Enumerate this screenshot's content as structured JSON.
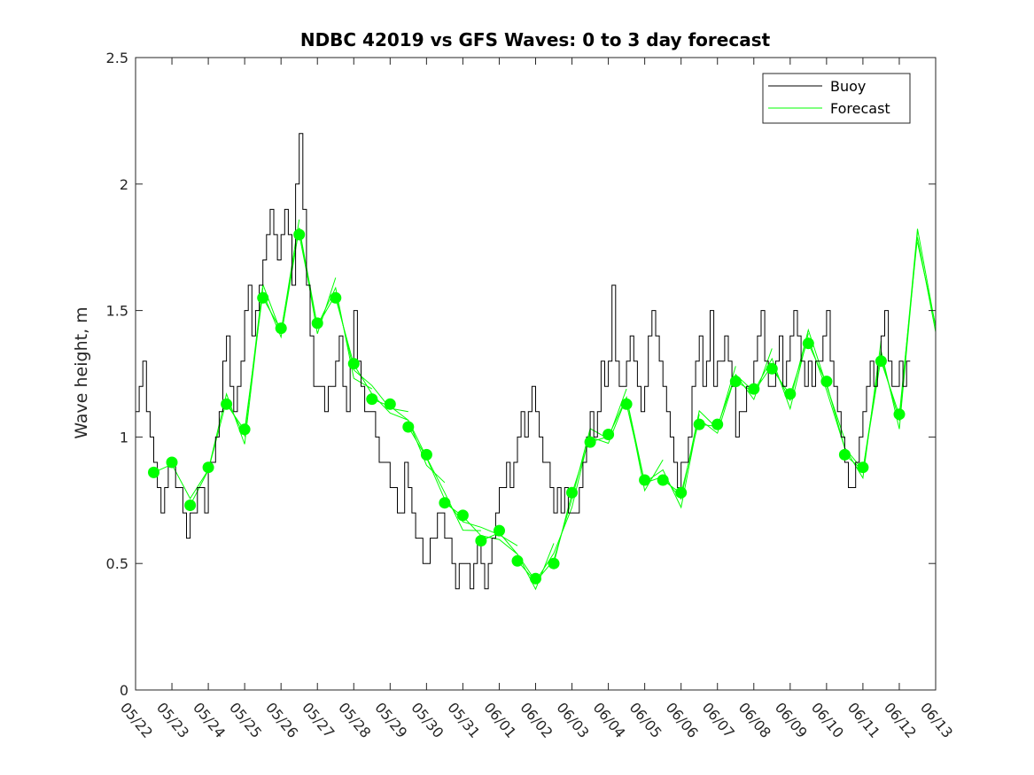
{
  "chart_data": {
    "type": "line",
    "title": "NDBC 42019 vs GFS Waves: 0 to 3 day forecast",
    "xlabel": "",
    "ylabel": "Wave height, m",
    "ylim": [
      0,
      2.5
    ],
    "yticks": [
      0,
      0.5,
      1,
      1.5,
      2,
      2.5
    ],
    "ytick_labels": [
      "0",
      "0.5",
      "1",
      "1.5",
      "2",
      "2.5"
    ],
    "xlim": [
      0,
      22
    ],
    "x_unit": "days since 05/22",
    "xtick_labels": [
      "05/22",
      "05/23",
      "05/24",
      "05/25",
      "05/26",
      "05/27",
      "05/28",
      "05/29",
      "05/30",
      "05/31",
      "06/01",
      "06/02",
      "06/03",
      "06/04",
      "06/05",
      "06/06",
      "06/07",
      "06/08",
      "06/09",
      "06/10",
      "06/11",
      "06/12",
      "06/13"
    ],
    "grid": false,
    "legend": {
      "position": "top-right",
      "entries": [
        {
          "label": "Buoy",
          "color": "#000000",
          "style": "line"
        },
        {
          "label": "Forecast",
          "color": "#00ff00",
          "style": "line"
        }
      ]
    },
    "colors": {
      "buoy": "#000000",
      "forecast": "#00ff00"
    },
    "series": [
      {
        "name": "Buoy",
        "x": [
          0,
          0.1,
          0.2,
          0.3,
          0.4,
          0.5,
          0.6,
          0.7,
          0.8,
          0.9,
          1.0,
          1.1,
          1.2,
          1.3,
          1.4,
          1.5,
          1.6,
          1.7,
          1.8,
          1.9,
          2.0,
          2.1,
          2.2,
          2.3,
          2.4,
          2.5,
          2.6,
          2.7,
          2.8,
          2.9,
          3.0,
          3.1,
          3.2,
          3.3,
          3.4,
          3.5,
          3.6,
          3.7,
          3.8,
          3.9,
          4.0,
          4.1,
          4.2,
          4.3,
          4.4,
          4.5,
          4.6,
          4.7,
          4.8,
          4.9,
          5.0,
          5.1,
          5.2,
          5.3,
          5.4,
          5.5,
          5.6,
          5.7,
          5.8,
          5.9,
          6.0,
          6.1,
          6.2,
          6.3,
          6.4,
          6.5,
          6.6,
          6.7,
          6.8,
          6.9,
          7.0,
          7.1,
          7.2,
          7.3,
          7.4,
          7.5,
          7.6,
          7.7,
          7.8,
          7.9,
          8.0,
          8.1,
          8.2,
          8.3,
          8.4,
          8.5,
          8.6,
          8.7,
          8.8,
          8.9,
          9.0,
          9.1,
          9.2,
          9.3,
          9.4,
          9.5,
          9.6,
          9.7,
          9.8,
          9.9,
          10.0,
          10.1,
          10.2,
          10.3,
          10.4,
          10.5,
          10.6,
          10.7,
          10.8,
          10.9,
          11.0,
          11.1,
          11.2,
          11.3,
          11.4,
          11.5,
          11.6,
          11.7,
          11.8,
          11.9,
          12.0,
          12.1,
          12.2,
          12.3,
          12.4,
          12.5,
          12.6,
          12.7,
          12.8,
          12.9,
          13.0,
          13.1,
          13.2,
          13.3,
          13.4,
          13.5,
          13.6,
          13.7,
          13.8,
          13.9,
          14.0,
          14.1,
          14.2,
          14.3,
          14.4,
          14.5,
          14.6,
          14.7,
          14.8,
          14.9,
          15.0,
          15.1,
          15.2,
          15.3,
          15.4,
          15.5,
          15.6,
          15.7,
          15.8,
          15.9,
          16.0,
          16.1,
          16.2,
          16.3,
          16.4,
          16.5,
          16.6,
          16.7,
          16.8,
          16.9,
          17.0,
          17.1,
          17.2,
          17.3,
          17.4,
          17.5,
          17.6,
          17.7,
          17.8,
          17.9,
          18.0,
          18.1,
          18.2,
          18.3,
          18.4,
          18.5,
          18.6,
          18.7,
          18.8,
          18.9,
          19.0,
          19.1,
          19.2,
          19.3,
          19.4,
          19.5,
          19.6,
          19.7,
          19.8,
          19.9,
          20.0,
          20.1,
          20.2,
          20.3,
          20.4,
          20.5,
          20.6,
          20.7,
          20.8,
          20.9,
          21.0,
          21.1,
          21.2,
          21.3
        ],
        "y": [
          1.1,
          1.2,
          1.3,
          1.1,
          1.0,
          0.9,
          0.8,
          0.7,
          0.8,
          0.9,
          0.9,
          0.8,
          0.8,
          0.7,
          0.6,
          0.7,
          0.7,
          0.8,
          0.8,
          0.7,
          0.9,
          0.9,
          1.0,
          1.1,
          1.3,
          1.4,
          1.2,
          1.1,
          1.2,
          1.3,
          1.5,
          1.6,
          1.4,
          1.5,
          1.6,
          1.7,
          1.8,
          1.9,
          1.8,
          1.7,
          1.8,
          1.9,
          1.8,
          1.6,
          2.0,
          2.2,
          1.9,
          1.6,
          1.4,
          1.2,
          1.2,
          1.2,
          1.1,
          1.2,
          1.2,
          1.3,
          1.4,
          1.2,
          1.1,
          1.3,
          1.5,
          1.3,
          1.2,
          1.1,
          1.1,
          1.1,
          1.0,
          0.9,
          0.9,
          0.9,
          0.8,
          0.8,
          0.7,
          0.7,
          0.9,
          0.8,
          0.7,
          0.6,
          0.6,
          0.5,
          0.5,
          0.6,
          0.6,
          0.7,
          0.7,
          0.6,
          0.6,
          0.5,
          0.4,
          0.5,
          0.5,
          0.5,
          0.4,
          0.5,
          0.6,
          0.5,
          0.4,
          0.5,
          0.6,
          0.7,
          0.8,
          0.8,
          0.9,
          0.8,
          0.9,
          1.0,
          1.1,
          1.0,
          1.1,
          1.2,
          1.1,
          1.0,
          0.9,
          0.9,
          0.8,
          0.7,
          0.8,
          0.7,
          0.8,
          0.7,
          0.7,
          0.7,
          0.8,
          0.9,
          1.0,
          1.1,
          1.0,
          1.1,
          1.3,
          1.2,
          1.3,
          1.6,
          1.3,
          1.2,
          1.2,
          1.3,
          1.4,
          1.3,
          1.2,
          1.1,
          1.2,
          1.4,
          1.5,
          1.4,
          1.3,
          1.2,
          1.1,
          1.0,
          0.9,
          0.8,
          0.9,
          0.9,
          1.0,
          1.2,
          1.3,
          1.4,
          1.2,
          1.3,
          1.5,
          1.2,
          1.3,
          1.3,
          1.4,
          1.3,
          1.2,
          1.0,
          1.1,
          1.1,
          1.2,
          1.2,
          1.3,
          1.4,
          1.5,
          1.3,
          1.2,
          1.2,
          1.3,
          1.4,
          1.2,
          1.3,
          1.4,
          1.5,
          1.4,
          1.3,
          1.2,
          1.3,
          1.2,
          1.3,
          1.3,
          1.4,
          1.5,
          1.3,
          1.2,
          1.1,
          1.0,
          0.9,
          0.8,
          0.8,
          0.9,
          1.0,
          1.1,
          1.2,
          1.3,
          1.2,
          1.3,
          1.4,
          1.5,
          1.3,
          1.2,
          1.2,
          1.3,
          1.2,
          1.3,
          1.3
        ]
      },
      {
        "name": "Forecast",
        "x": [
          0.5,
          1.0,
          1.5,
          2.0,
          2.5,
          3.0,
          3.5,
          4.0,
          4.5,
          5.0,
          5.5,
          6.0,
          6.5,
          7.0,
          7.5,
          8.0,
          8.5,
          9.0,
          9.5,
          10.0,
          10.5,
          11.0,
          11.5,
          12.0,
          12.5,
          13.0,
          13.5,
          14.0,
          14.5,
          15.0,
          15.5,
          16.0,
          16.5,
          17.0,
          17.5,
          18.0,
          18.5,
          19.0,
          19.5,
          20.0,
          20.5,
          21.0,
          21.5,
          22.0
        ],
        "y": [
          0.86,
          0.9,
          0.73,
          0.88,
          1.13,
          1.03,
          1.55,
          1.43,
          1.8,
          1.45,
          1.55,
          1.29,
          1.15,
          1.13,
          1.04,
          0.93,
          0.74,
          0.69,
          0.59,
          0.63,
          0.51,
          0.44,
          0.5,
          0.78,
          0.98,
          1.01,
          1.13,
          0.83,
          0.83,
          0.78,
          1.05,
          1.05,
          1.22,
          1.19,
          1.27,
          1.17,
          1.37,
          1.22,
          0.93,
          0.88,
          1.3,
          1.09,
          1.77,
          1.45
        ]
      }
    ],
    "forecast_markers": {
      "x": [
        0.5,
        1.0,
        1.5,
        2.0,
        2.5,
        3.0,
        3.5,
        4.0,
        4.5,
        5.0,
        5.5,
        6.0,
        6.5,
        7.0,
        7.5,
        8.0,
        8.5,
        9.0,
        9.5,
        10.0,
        10.5,
        11.0,
        11.5,
        12.0,
        12.5,
        13.0,
        13.5,
        14.0,
        14.5,
        15.0,
        15.5,
        16.0,
        16.5,
        17.0,
        17.5,
        18.0,
        18.5,
        19.0,
        19.5,
        20.0,
        20.5,
        21.0
      ],
      "y": [
        0.86,
        0.9,
        0.73,
        0.88,
        1.13,
        1.03,
        1.55,
        1.43,
        1.8,
        1.45,
        1.55,
        1.29,
        1.15,
        1.13,
        1.04,
        0.93,
        0.74,
        0.69,
        0.59,
        0.63,
        0.51,
        0.44,
        0.5,
        0.78,
        0.98,
        1.01,
        1.13,
        0.83,
        0.83,
        0.78,
        1.05,
        1.05,
        1.22,
        1.19,
        1.27,
        1.17,
        1.37,
        1.22,
        0.93,
        0.88,
        1.3,
        1.09
      ]
    }
  }
}
